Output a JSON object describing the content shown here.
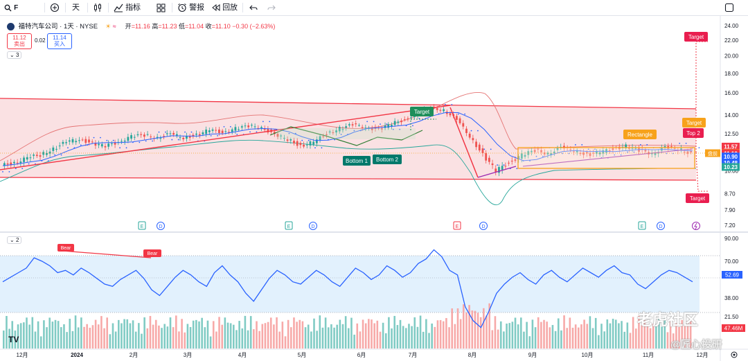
{
  "toolbar": {
    "symbol_search": "F",
    "interval": "天",
    "indicators": "指标",
    "alert": "警报",
    "replay": "回放"
  },
  "legend": {
    "title": "福特汽车公司 · 1天 · NYSE",
    "open_label": "开",
    "open": "=11.16",
    "high_label": "高",
    "high": "=11.23",
    "low_label": "低",
    "low": "=11.04",
    "close_label": "收",
    "close": "=11.10",
    "change": "−0.30 (−2.63%)",
    "sell_price": "11.12",
    "sell_label": "卖出",
    "spread": "0.02",
    "buy_price": "11.14",
    "buy_label": "买入",
    "collapse_main": "3",
    "collapse_rsi": "2"
  },
  "watermark": {
    "line1": "老虎社区",
    "line2": "@匠心投研"
  },
  "colors": {
    "up": "#26a69a",
    "down": "#ef5350",
    "channel": "#f23645",
    "ma": "#2962ff",
    "bollinger": "#e57373",
    "rsi": "#2962ff",
    "rsi_band": "#e3f2fd",
    "green_label": "#1e8e5a",
    "orange_label": "#f7a21b"
  },
  "chart_data": [
    {
      "type": "line",
      "title": "福特汽车公司 · 1天 · NYSE",
      "x_tick_labels": [
        "12月",
        "2024",
        "2月",
        "3月",
        "4月",
        "5月",
        "6月",
        "7月",
        "8月",
        "9月",
        "10月",
        "11月",
        "12月"
      ],
      "y_tick_labels": [
        "24.00",
        "22.00",
        "20.00",
        "18.00",
        "16.00",
        "14.00",
        "12.50",
        "11.10",
        "10.00",
        "8.70",
        "7.90",
        "7.20"
      ],
      "yscale": "log",
      "ylim": [
        7.2,
        24.0
      ],
      "series": [
        {
          "values": [
            10.3,
            10.5,
            10.8,
            11.0,
            11.4,
            11.9,
            12.1,
            11.8,
            11.6,
            11.9,
            12.3,
            12.4,
            12.2,
            12.5,
            12.2,
            12.4,
            12.8,
            12.6,
            12.9,
            13.1,
            13.0,
            12.4,
            12.1,
            11.6,
            11.9,
            12.5,
            12.9,
            13.2,
            13.0,
            12.8,
            13.3,
            13.6,
            14.2,
            14.6,
            14.4,
            13.6,
            12.3,
            11.0,
            10.0,
            10.5,
            11.0,
            11.3,
            11.1,
            11.5,
            11.3,
            11.0,
            11.2,
            11.4,
            11.6,
            11.3,
            11.1,
            11.5,
            11.4,
            11.1
          ]
        }
      ],
      "annotations": [
        "Target",
        "Bottom 1",
        "Bottom 2",
        "Target",
        "Rectangle",
        "Target",
        "Top 2",
        "Target"
      ],
      "price_labels": [
        {
          "value": "11.57",
          "color": "#f23645"
        },
        {
          "value": "11.12",
          "color": "#f7a21b",
          "tag": "盘前"
        },
        {
          "value": "11.10",
          "color": "#f23645"
        },
        {
          "value": "10.90",
          "color": "#2962ff"
        },
        {
          "value": "10.48",
          "color": "#2962ff"
        },
        {
          "value": "10.23",
          "color": "#26a69a"
        }
      ],
      "event_markers": [
        "E",
        "D",
        "E",
        "D",
        "E",
        "D",
        "E",
        "D"
      ]
    },
    {
      "type": "line",
      "y_tick_labels": [
        "90.00",
        "70.00",
        "38.00",
        "21.50"
      ],
      "ylim": [
        10,
        90
      ],
      "series": [
        {
          "values": [
            52,
            56,
            60,
            64,
            73,
            70,
            66,
            60,
            62,
            58,
            64,
            60,
            55,
            50,
            48,
            54,
            58,
            62,
            55,
            45,
            40,
            48,
            56,
            62,
            58,
            52,
            48,
            60,
            66,
            58,
            52,
            42,
            35,
            45,
            55,
            62,
            58,
            52,
            50,
            56,
            62,
            58,
            52,
            48,
            56,
            64,
            60,
            54,
            58,
            66,
            62,
            56,
            60,
            68,
            72,
            80,
            74,
            62,
            58,
            30,
            18,
            12,
            26,
            42,
            50,
            56,
            60,
            54,
            50,
            58,
            62,
            56,
            52,
            58,
            64,
            60,
            56,
            62,
            66,
            60,
            58,
            50,
            46,
            52,
            58,
            62,
            60,
            56,
            52
          ]
        }
      ],
      "current_value": "52.69",
      "volume_label": "47.46M",
      "annotations": [
        "Bear",
        "Bear"
      ]
    }
  ]
}
